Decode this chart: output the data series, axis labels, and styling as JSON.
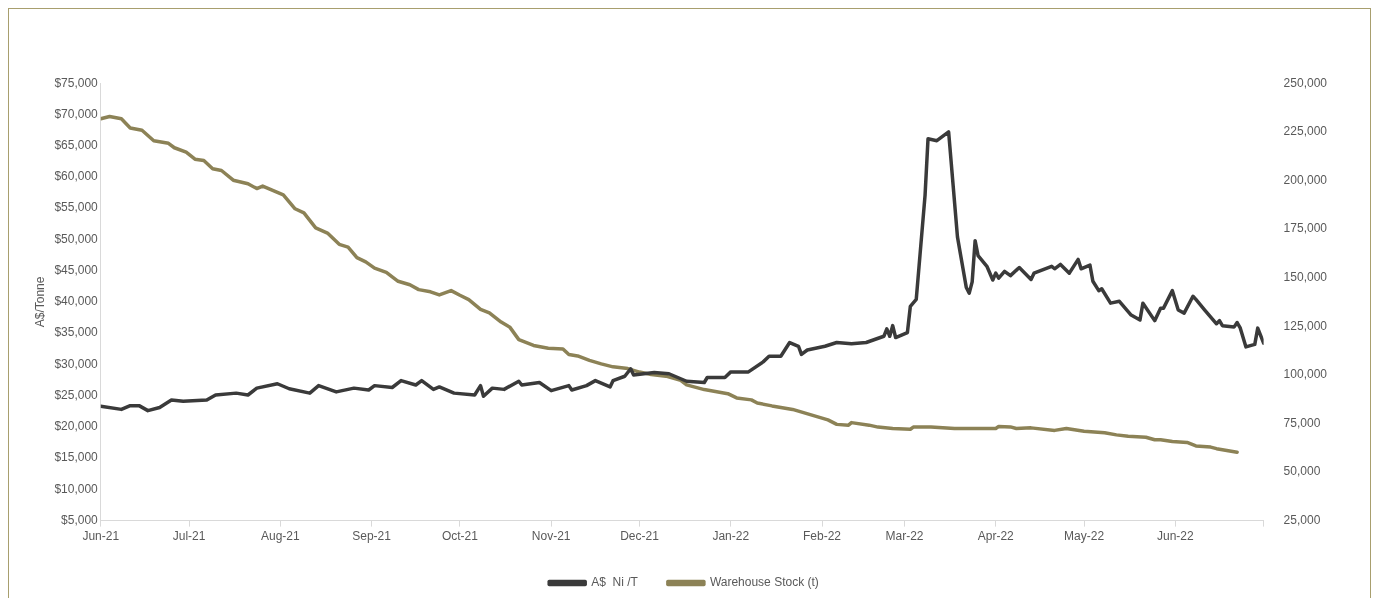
{
  "chart_data": {
    "type": "line",
    "ylabel": "A$/Tonne",
    "legend": "bottom",
    "grid": false,
    "marker": "none",
    "line_style": "solid",
    "xlim": [
      "2021-06-01",
      "2022-07-01"
    ],
    "xticks": [
      {
        "value": "2021-06-01",
        "label": "Jun-21"
      },
      {
        "value": "2021-07-01",
        "label": "Jul-21"
      },
      {
        "value": "2021-08-01",
        "label": "Aug-21"
      },
      {
        "value": "2021-09-01",
        "label": "Sep-21"
      },
      {
        "value": "2021-10-01",
        "label": "Oct-21"
      },
      {
        "value": "2021-11-01",
        "label": "Nov-21"
      },
      {
        "value": "2021-12-01",
        "label": "Dec-21"
      },
      {
        "value": "2022-01-01",
        "label": "Jan-22"
      },
      {
        "value": "2022-02-01",
        "label": "Feb-22"
      },
      {
        "value": "2022-03-01",
        "label": "Mar-22"
      },
      {
        "value": "2022-04-01",
        "label": "Apr-22"
      },
      {
        "value": "2022-05-01",
        "label": "May-22"
      },
      {
        "value": "2022-06-01",
        "label": "Jun-22"
      },
      {
        "value": "2022-07-01",
        "label": null
      }
    ],
    "ylim": [
      5000,
      75000
    ],
    "yticks": [
      {
        "value": 5000,
        "label": "$5,000"
      },
      {
        "value": 10000,
        "label": "$10,000"
      },
      {
        "value": 15000,
        "label": "$15,000"
      },
      {
        "value": 20000,
        "label": "$20,000"
      },
      {
        "value": 25000,
        "label": "$25,000"
      },
      {
        "value": 30000,
        "label": "$30,000"
      },
      {
        "value": 35000,
        "label": "$35,000"
      },
      {
        "value": 40000,
        "label": "$40,000"
      },
      {
        "value": 45000,
        "label": "$45,000"
      },
      {
        "value": 50000,
        "label": "$50,000"
      },
      {
        "value": 55000,
        "label": "$55,000"
      },
      {
        "value": 60000,
        "label": "$60,000"
      },
      {
        "value": 65000,
        "label": "$65,000"
      },
      {
        "value": 70000,
        "label": "$70,000"
      },
      {
        "value": 75000,
        "label": "$75,000"
      }
    ],
    "y2lim": [
      25000,
      250000
    ],
    "y2ticks": [
      {
        "value": 25000,
        "label": "25,000"
      },
      {
        "value": 50000,
        "label": "50,000"
      },
      {
        "value": 75000,
        "label": "75,000"
      },
      {
        "value": 100000,
        "label": "100,000"
      },
      {
        "value": 125000,
        "label": "125,000"
      },
      {
        "value": 150000,
        "label": "150,000"
      },
      {
        "value": 175000,
        "label": "175,000"
      },
      {
        "value": 200000,
        "label": "200,000"
      },
      {
        "value": 225000,
        "label": "225,000"
      },
      {
        "value": 250000,
        "label": "250,000"
      }
    ],
    "series": [
      {
        "name": "A$  Ni /T",
        "color": "#3a3a3a",
        "x": [
          "2021-06-01",
          "2021-06-08",
          "2021-06-11",
          "2021-06-14",
          "2021-06-17",
          "2021-06-21",
          "2021-06-25",
          "2021-06-29",
          "2021-07-07",
          "2021-07-10",
          "2021-07-17",
          "2021-07-21",
          "2021-07-24",
          "2021-07-31",
          "2021-08-04",
          "2021-08-11",
          "2021-08-14",
          "2021-08-20",
          "2021-08-26",
          "2021-08-31",
          "2021-09-02",
          "2021-09-08",
          "2021-09-11",
          "2021-09-16",
          "2021-09-18",
          "2021-09-22",
          "2021-09-24",
          "2021-09-29",
          "2021-10-06",
          "2021-10-08",
          "2021-10-09",
          "2021-10-12",
          "2021-10-16",
          "2021-10-21",
          "2021-10-22",
          "2021-10-28",
          "2021-11-01",
          "2021-11-07",
          "2021-11-08",
          "2021-11-13",
          "2021-11-16",
          "2021-11-21",
          "2021-11-22",
          "2021-11-26",
          "2021-11-28",
          "2021-11-29",
          "2021-12-06",
          "2021-12-11",
          "2021-12-17",
          "2021-12-23",
          "2021-12-24",
          "2021-12-30",
          "2022-01-01",
          "2022-01-07",
          "2022-01-12",
          "2022-01-14",
          "2022-01-18",
          "2022-01-21",
          "2022-01-24",
          "2022-01-25",
          "2022-01-27",
          "2022-02-02",
          "2022-02-06",
          "2022-02-11",
          "2022-02-16",
          "2022-02-22",
          "2022-02-23",
          "2022-02-24",
          "2022-02-25",
          "2022-02-26",
          "2022-03-02",
          "2022-03-03",
          "2022-03-05",
          "2022-03-08",
          "2022-03-09",
          "2022-03-12",
          "2022-03-16",
          "2022-03-19",
          "2022-03-22",
          "2022-03-23",
          "2022-03-24",
          "2022-03-25",
          "2022-03-26",
          "2022-03-29",
          "2022-03-31",
          "2022-04-01",
          "2022-04-02",
          "2022-04-04",
          "2022-04-06",
          "2022-04-09",
          "2022-04-13",
          "2022-04-14",
          "2022-04-20",
          "2022-04-21",
          "2022-04-23",
          "2022-04-26",
          "2022-04-29",
          "2022-04-30",
          "2022-05-03",
          "2022-05-04",
          "2022-05-06",
          "2022-05-07",
          "2022-05-10",
          "2022-05-13",
          "2022-05-17",
          "2022-05-20",
          "2022-05-21",
          "2022-05-25",
          "2022-05-27",
          "2022-05-28",
          "2022-05-31",
          "2022-06-02",
          "2022-06-04",
          "2022-06-07",
          "2022-06-08",
          "2022-06-11",
          "2022-06-15",
          "2022-06-16",
          "2022-06-17",
          "2022-06-21",
          "2022-06-22",
          "2022-06-23",
          "2022-06-25",
          "2022-06-28",
          "2022-06-29",
          "2022-07-01"
        ],
        "values": [
          23300,
          22800,
          23400,
          23400,
          22600,
          23100,
          24300,
          24100,
          24300,
          25100,
          25400,
          25100,
          26200,
          26900,
          26100,
          25400,
          26600,
          25600,
          26200,
          25900,
          26600,
          26300,
          27400,
          26700,
          27400,
          26000,
          26400,
          25400,
          25100,
          26600,
          24900,
          26200,
          26000,
          27300,
          26700,
          27100,
          25800,
          26600,
          25900,
          26600,
          27400,
          26400,
          27400,
          28100,
          29300,
          28300,
          28700,
          28500,
          27300,
          27100,
          27900,
          27900,
          28800,
          28800,
          30400,
          31300,
          31300,
          33500,
          32900,
          31600,
          32300,
          32900,
          33500,
          33300,
          33500,
          34500,
          35700,
          34500,
          36200,
          34300,
          35100,
          39300,
          40400,
          57100,
          66100,
          65800,
          67200,
          50400,
          42300,
          41400,
          43200,
          49800,
          47400,
          45700,
          43500,
          44600,
          43800,
          44900,
          44200,
          45500,
          43600,
          44600,
          45700,
          45300,
          46000,
          44600,
          46800,
          45300,
          45900,
          43300,
          41800,
          42100,
          39800,
          40100,
          37900,
          37100,
          39800,
          37000,
          39000,
          39000,
          41800,
          38700,
          38200,
          40900,
          40400,
          38700,
          36500,
          37000,
          36200,
          36000,
          36700,
          35900,
          32800,
          33200,
          35800,
          33400
        ]
      },
      {
        "name": "Warehouse Stock (t)",
        "color": "#8c8256",
        "axis": "y2",
        "x": [
          "2021-06-01",
          "2021-06-04",
          "2021-06-08",
          "2021-06-11",
          "2021-06-15",
          "2021-06-19",
          "2021-06-24",
          "2021-06-26",
          "2021-06-30",
          "2021-07-03",
          "2021-07-06",
          "2021-07-09",
          "2021-07-12",
          "2021-07-16",
          "2021-07-21",
          "2021-07-24",
          "2021-07-26",
          "2021-08-02",
          "2021-08-06",
          "2021-08-09",
          "2021-08-13",
          "2021-08-17",
          "2021-08-21",
          "2021-08-24",
          "2021-08-27",
          "2021-08-30",
          "2021-09-02",
          "2021-09-06",
          "2021-09-10",
          "2021-09-14",
          "2021-09-17",
          "2021-09-21",
          "2021-09-24",
          "2021-09-28",
          "2021-10-01",
          "2021-10-04",
          "2021-10-08",
          "2021-10-11",
          "2021-10-15",
          "2021-10-18",
          "2021-10-21",
          "2021-10-26",
          "2021-10-31",
          "2021-11-05",
          "2021-11-07",
          "2021-11-10",
          "2021-11-14",
          "2021-11-18",
          "2021-11-22",
          "2021-11-27",
          "2021-12-01",
          "2021-12-05",
          "2021-12-10",
          "2021-12-15",
          "2021-12-17",
          "2021-12-23",
          "2021-12-31",
          "2022-01-03",
          "2022-01-08",
          "2022-01-10",
          "2022-01-15",
          "2022-01-22",
          "2022-01-28",
          "2022-02-03",
          "2022-02-06",
          "2022-02-10",
          "2022-02-11",
          "2022-02-17",
          "2022-02-20",
          "2022-02-25",
          "2022-03-03",
          "2022-03-04",
          "2022-03-10",
          "2022-03-18",
          "2022-04-01",
          "2022-04-02",
          "2022-04-06",
          "2022-04-08",
          "2022-04-13",
          "2022-04-21",
          "2022-04-25",
          "2022-05-01",
          "2022-05-08",
          "2022-05-12",
          "2022-05-16",
          "2022-05-22",
          "2022-05-25",
          "2022-05-27",
          "2022-05-31",
          "2022-06-05",
          "2022-06-08",
          "2022-06-13",
          "2022-06-15",
          "2022-06-22"
        ],
        "values": [
          231700,
          232900,
          231700,
          227000,
          225800,
          220400,
          219100,
          216800,
          214500,
          210900,
          210200,
          206000,
          205100,
          200100,
          198300,
          195800,
          197100,
          192600,
          185400,
          183300,
          175600,
          172900,
          167100,
          165700,
          160300,
          158100,
          154900,
          152700,
          148100,
          146300,
          143800,
          142700,
          141100,
          143300,
          140900,
          138700,
          133700,
          131900,
          127100,
          124400,
          118100,
          115100,
          113700,
          113300,
          110400,
          109700,
          107400,
          105600,
          104100,
          103200,
          101400,
          100200,
          99300,
          97100,
          94800,
          92400,
          90300,
          88100,
          87100,
          85500,
          84000,
          82200,
          79500,
          76800,
          74500,
          74100,
          75400,
          74100,
          73100,
          72400,
          72000,
          73100,
          73100,
          72400,
          72400,
          73400,
          73200,
          72400,
          72700,
          71400,
          72400,
          71000,
          70200,
          69100,
          68400,
          67900,
          66600,
          66600,
          65700,
          65200,
          63400,
          62800,
          62000,
          60200
        ]
      }
    ]
  }
}
